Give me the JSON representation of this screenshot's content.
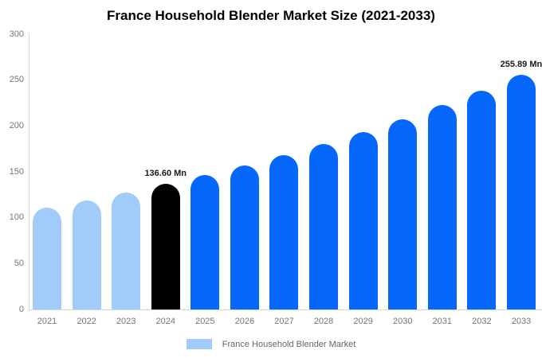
{
  "chart": {
    "title": "France Household Blender Market Size (2021-2033)"
  },
  "chart_data": {
    "type": "bar",
    "title": "France Household Blender Market Size (2021-2033)",
    "categories": [
      "2021",
      "2022",
      "2023",
      "2024",
      "2025",
      "2026",
      "2027",
      "2028",
      "2029",
      "2030",
      "2031",
      "2032",
      "2033"
    ],
    "values": [
      110.8,
      118.8,
      127.4,
      136.6,
      146.5,
      157.0,
      168.4,
      180.5,
      193.6,
      207.5,
      222.5,
      238.6,
      255.89
    ],
    "unit": "Mn",
    "bar_colors": [
      "#a1cbf9",
      "#a1cbf9",
      "#a1cbf9",
      "#000000",
      "#0567fb",
      "#0567fb",
      "#0567fb",
      "#0567fb",
      "#0567fb",
      "#0567fb",
      "#0567fb",
      "#0567fb",
      "#0567fb"
    ],
    "data_labels": [
      null,
      null,
      null,
      "136.60 Mn",
      null,
      null,
      null,
      null,
      null,
      null,
      null,
      null,
      "255.89 Mn"
    ],
    "xlabel": "",
    "ylabel": "",
    "ylim": [
      0,
      300
    ],
    "y_ticks": [
      0,
      50,
      100,
      150,
      200,
      250,
      300
    ],
    "grid": false,
    "legend_position": "bottom",
    "legend_entries": [
      "France Household Blender Market"
    ],
    "legend_swatch_color": "#a1cbf9",
    "colors": {
      "historical_bar": "#a1cbf9",
      "base_year_bar": "#000000",
      "forecast_bar": "#0567fb",
      "axis_line": "#d6d6d6",
      "tick_label": "#757575"
    }
  }
}
